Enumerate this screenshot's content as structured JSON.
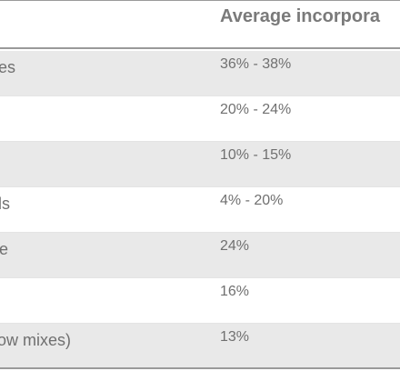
{
  "table": {
    "header": {
      "col2": "Average incorpora"
    },
    "rows": [
      {
        "left": "es",
        "right": "36% - 38%"
      },
      {
        "left": "",
        "right": "20% - 24%"
      },
      {
        "left": "",
        "right": "10% - 15%"
      },
      {
        "left": "ls",
        "right": "4% - 20%"
      },
      {
        "left": "e",
        "right": "24%"
      },
      {
        "left": "",
        "right": "16%"
      },
      {
        "left": "ow mixes)",
        "right": "13%"
      }
    ]
  }
}
